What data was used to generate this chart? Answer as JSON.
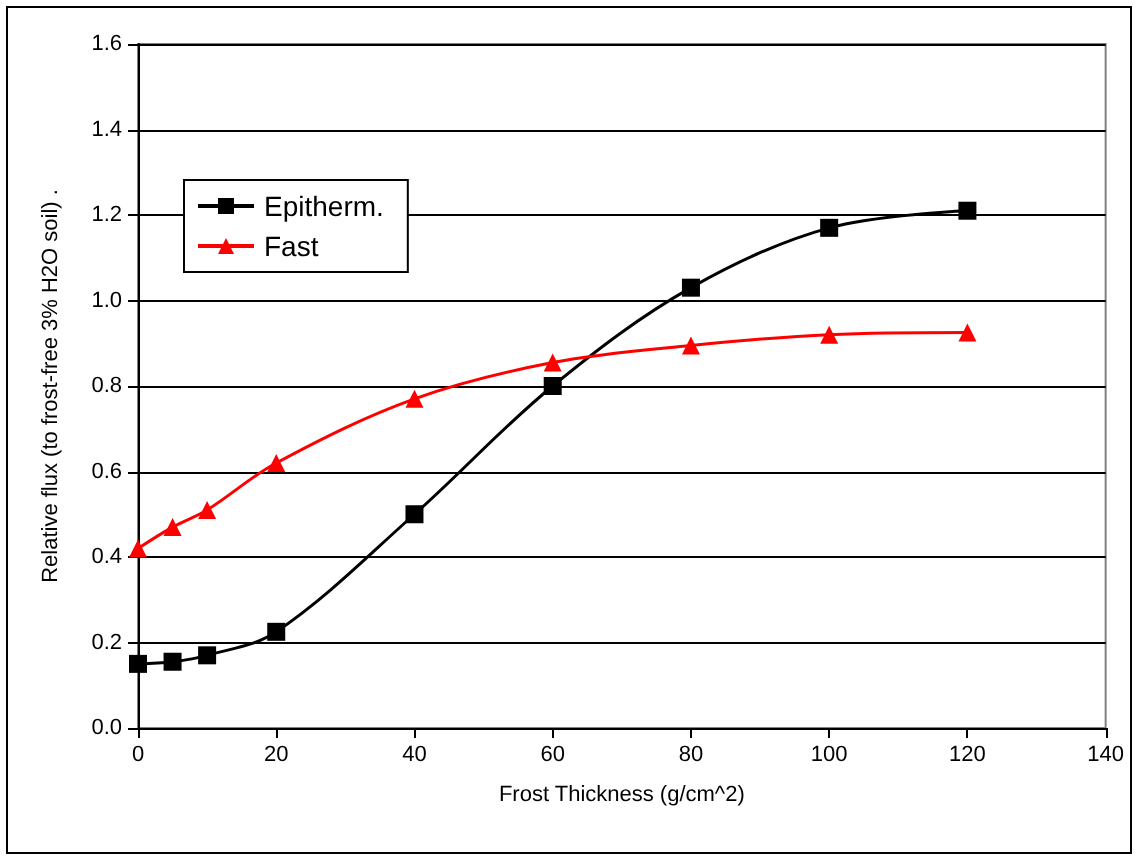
{
  "chart_data": {
    "type": "line",
    "xlabel": "Frost Thickness (g/cm^2)",
    "ylabel": "Relative flux (to frost-free 3% H2O soil) .",
    "x": [
      0,
      5,
      10,
      20,
      40,
      60,
      80,
      100,
      120
    ],
    "series": [
      {
        "name": "Epitherm.",
        "color": "#000000",
        "marker": "square",
        "values": [
          0.15,
          0.155,
          0.17,
          0.225,
          0.5,
          0.8,
          1.03,
          1.17,
          1.21
        ]
      },
      {
        "name": "Fast",
        "color": "#ff0000",
        "marker": "triangle",
        "values": [
          0.42,
          0.47,
          0.51,
          0.62,
          0.77,
          0.855,
          0.895,
          0.92,
          0.925
        ]
      }
    ],
    "xlim": [
      0,
      140
    ],
    "xticks": [
      0,
      20,
      40,
      60,
      80,
      100,
      120,
      140
    ],
    "ylim": [
      0,
      1.6
    ],
    "yticks": [
      {
        "value": 0,
        "label": "0.0"
      },
      {
        "value": 0.2,
        "label": "0.2"
      },
      {
        "value": 0.4,
        "label": "0.4"
      },
      {
        "value": 0.6,
        "label": "0.6"
      },
      {
        "value": 0.8,
        "label": "0.8"
      },
      {
        "value": 1,
        "label": "1.0"
      },
      {
        "value": 1.2,
        "label": "1.2"
      },
      {
        "value": 1.4,
        "label": "1.4"
      },
      {
        "value": 1.6,
        "label": "1.6"
      }
    ],
    "grid": "y",
    "legend": "top left",
    "line_style": "solid"
  }
}
